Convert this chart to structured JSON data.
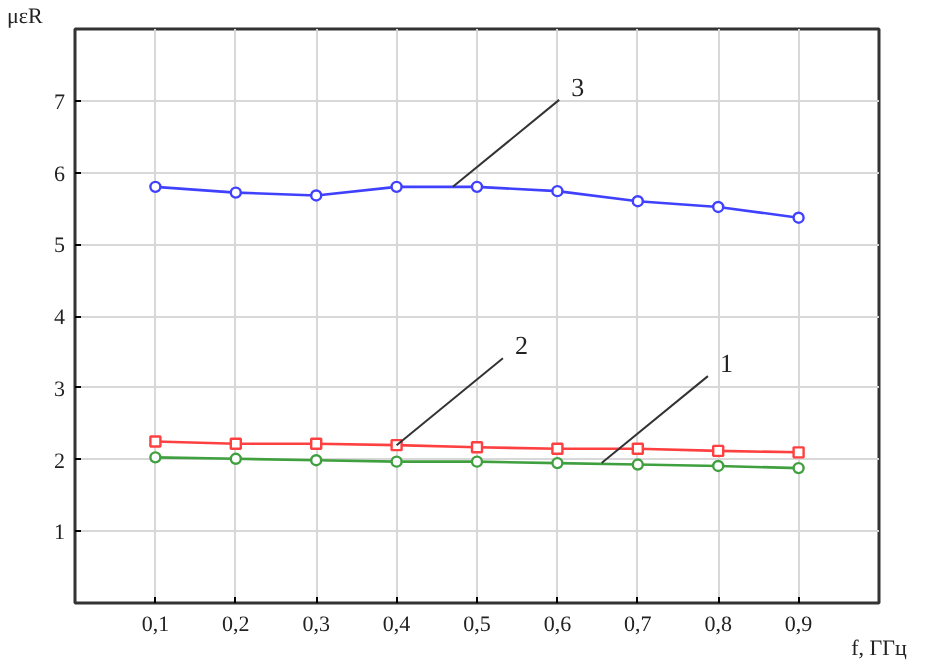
{
  "chart_data": {
    "type": "line",
    "xlabel": "f, ГГц",
    "ylabel": "μεR",
    "x": [
      0.1,
      0.2,
      0.3,
      0.4,
      0.5,
      0.6,
      0.7,
      0.8,
      0.9
    ],
    "series": [
      {
        "color": "#40a040",
        "marker": "circle",
        "values": [
          2.03,
          2.01,
          1.99,
          1.97,
          1.97,
          1.95,
          1.93,
          1.91,
          1.88
        ]
      },
      {
        "color": "#ff4040",
        "marker": "square",
        "values": [
          2.25,
          2.22,
          2.22,
          2.2,
          2.17,
          2.15,
          2.15,
          2.12,
          2.1
        ]
      },
      {
        "color": "#4040ff",
        "marker": "circle",
        "values": [
          5.8,
          5.72,
          5.68,
          5.8,
          5.8,
          5.74,
          5.6,
          5.52,
          5.37
        ]
      }
    ],
    "xlim": [
      0,
      1
    ],
    "ylim": [
      0,
      8
    ],
    "xticks": [
      {
        "value": 0.1,
        "label": "0,1"
      },
      {
        "value": 0.2,
        "label": "0,2"
      },
      {
        "value": 0.3,
        "label": "0,3"
      },
      {
        "value": 0.4,
        "label": "0,4"
      },
      {
        "value": 0.5,
        "label": "0,5"
      },
      {
        "value": 0.6,
        "label": "0,6"
      },
      {
        "value": 0.7,
        "label": "0,7"
      },
      {
        "value": 0.8,
        "label": "0,8"
      },
      {
        "value": 0.9,
        "label": "0,9"
      }
    ],
    "yticks": [
      1,
      2,
      3,
      4,
      5,
      6,
      7
    ],
    "annotations": [
      {
        "text": "1",
        "x": 0.655,
        "y": 1.95
      },
      {
        "text": "2",
        "x": 0.4,
        "y": 2.2
      },
      {
        "text": "3",
        "x": 0.47,
        "y": 5.8
      }
    ],
    "grid": true,
    "line_style": "solid"
  }
}
